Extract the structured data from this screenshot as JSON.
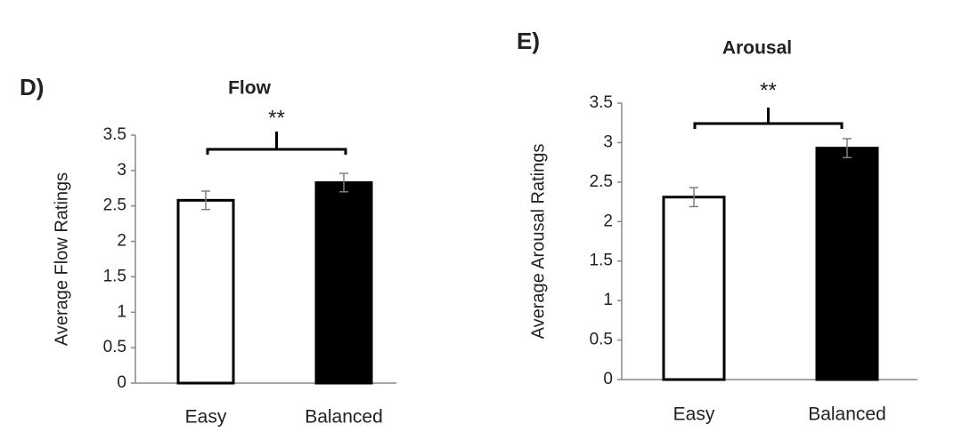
{
  "chart_data": [
    {
      "type": "bar",
      "panel": "D)",
      "title": "Flow",
      "ylabel": "Average Flow Ratings",
      "categories": [
        "Easy",
        "Balanced"
      ],
      "values": [
        2.58,
        2.83
      ],
      "errors": [
        0.13,
        0.13
      ],
      "colors": [
        "#ffffff",
        "#000000"
      ],
      "error_color": "#7f7f7f",
      "ylim": [
        0,
        3.5
      ],
      "yticks": [
        0,
        0.5,
        1,
        1.5,
        2,
        2.5,
        3,
        3.5
      ],
      "significance": "**"
    },
    {
      "type": "bar",
      "panel": "E)",
      "title": "Arousal",
      "ylabel": "Average Arousal Ratings",
      "categories": [
        "Easy",
        "Balanced"
      ],
      "values": [
        2.31,
        2.93
      ],
      "errors": [
        0.12,
        0.12
      ],
      "colors": [
        "#ffffff",
        "#000000"
      ],
      "error_color": "#7f7f7f",
      "ylim": [
        0,
        3.5
      ],
      "yticks": [
        0,
        0.5,
        1,
        1.5,
        2,
        2.5,
        3,
        3.5
      ],
      "significance": "**"
    }
  ]
}
